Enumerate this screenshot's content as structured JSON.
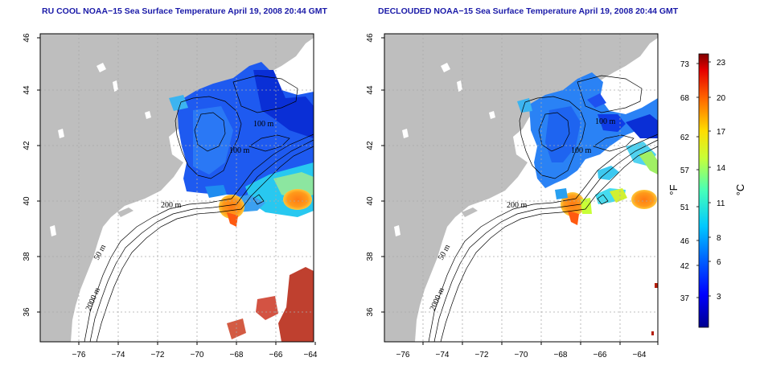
{
  "titles": {
    "left": "RU COOL NOAA−15 Sea Surface Temperature April 19, 2008 20:44 GMT",
    "right": "DECLOUDED NOAA−15 Sea Surface Temperature April 19, 2008 20:44 GMT"
  },
  "axes": {
    "x_ticks": [
      "−76",
      "−74",
      "−72",
      "−70",
      "−68",
      "−66",
      "−64"
    ],
    "y_ticks": [
      "36",
      "38",
      "40",
      "42",
      "44",
      "46"
    ]
  },
  "contour_labels": {
    "c200": "200 m",
    "c100": "100 m",
    "c50": "50 m",
    "c2000": "2000 m"
  },
  "colorbar": {
    "unit_f": "°F",
    "unit_c": "°C",
    "f_ticks": [
      "73",
      "68",
      "62",
      "57",
      "51",
      "46",
      "42",
      "37"
    ],
    "c_ticks": [
      "23",
      "20",
      "17",
      "14",
      "11",
      "8",
      "6",
      "3"
    ]
  },
  "colors": {
    "land": "#bebebe",
    "grid": "#aaaaaa",
    "title": "#1a1aa8"
  }
}
